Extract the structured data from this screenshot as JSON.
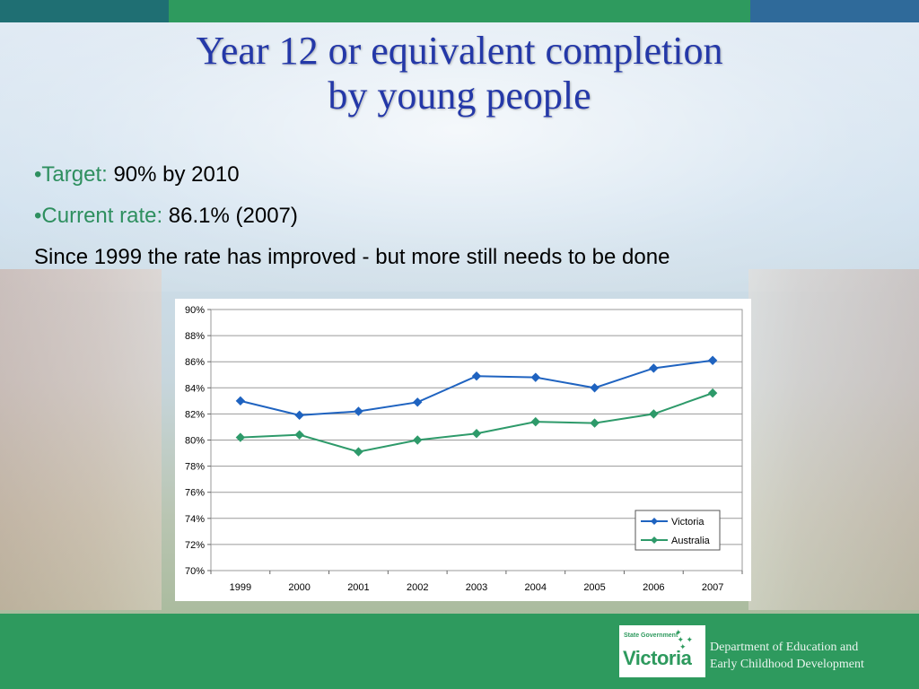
{
  "slide": {
    "title_line1": "Year 12 or equivalent completion",
    "title_line2": "by young people"
  },
  "bullets": {
    "target_label": "•Target:",
    "target_value": "90% by 2010",
    "current_label": "•Current rate:",
    "current_value": "86.1% (2007)",
    "note": "Since 1999 the rate has improved - but more still needs to be done"
  },
  "footer": {
    "logo_small": "State Government",
    "logo_big": "Victoria",
    "dept_line1": "Department of Education and",
    "dept_line2": "Early Childhood Development"
  },
  "colors": {
    "title": "#2438a8",
    "accent_green": "#2e9a5e",
    "victoria_series": "#1f63c0",
    "australia_series": "#2e9a6a",
    "topbar_teal": "#1f6f73",
    "topbar_blue": "#2f6a9a"
  },
  "chart_data": {
    "type": "line",
    "title": "",
    "xlabel": "",
    "ylabel": "",
    "ylim": [
      70,
      90
    ],
    "y_ticks": [
      "70%",
      "72%",
      "74%",
      "76%",
      "78%",
      "80%",
      "82%",
      "84%",
      "86%",
      "88%",
      "90%"
    ],
    "categories": [
      "1999",
      "2000",
      "2001",
      "2002",
      "2003",
      "2004",
      "2005",
      "2006",
      "2007"
    ],
    "series": [
      {
        "name": "Victoria",
        "values": [
          83.0,
          81.9,
          82.2,
          82.9,
          84.9,
          84.8,
          84.0,
          85.5,
          86.1
        ]
      },
      {
        "name": "Australia",
        "values": [
          80.2,
          80.4,
          79.1,
          80.0,
          80.5,
          81.4,
          81.3,
          82.0,
          83.6
        ]
      }
    ],
    "grid": true,
    "legend_position": "bottom-right"
  }
}
